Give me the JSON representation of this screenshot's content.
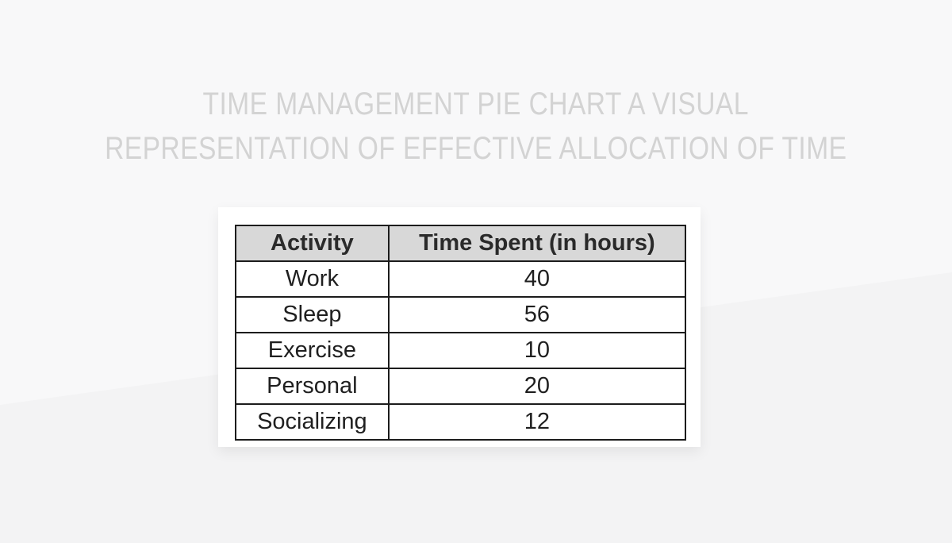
{
  "title": {
    "line1": "TIME MANAGEMENT PIE CHART A VISUAL",
    "line2": "REPRESENTATION OF EFFECTIVE ALLOCATION OF TIME"
  },
  "chart_data": {
    "type": "table",
    "title": "TIME MANAGEMENT PIE CHART A VISUAL REPRESENTATION OF EFFECTIVE ALLOCATION OF TIME",
    "columns": [
      "Activity",
      "Time Spent (in hours)"
    ],
    "rows": [
      {
        "activity": "Work",
        "hours": "40"
      },
      {
        "activity": "Sleep",
        "hours": "56"
      },
      {
        "activity": "Exercise",
        "hours": "10"
      },
      {
        "activity": "Personal",
        "hours": "20"
      },
      {
        "activity": "Socializing",
        "hours": "12"
      }
    ]
  },
  "colors": {
    "page_bg_top": "#f8f8f9",
    "page_bg_bottom": "#f3f3f4",
    "title_text": "#d3d3d3",
    "card_bg": "#ffffff",
    "table_border": "#1c1c1c",
    "header_bg": "#d8d8d8",
    "header_text": "#2a2a2a",
    "cell_text": "#1f1f1f"
  }
}
